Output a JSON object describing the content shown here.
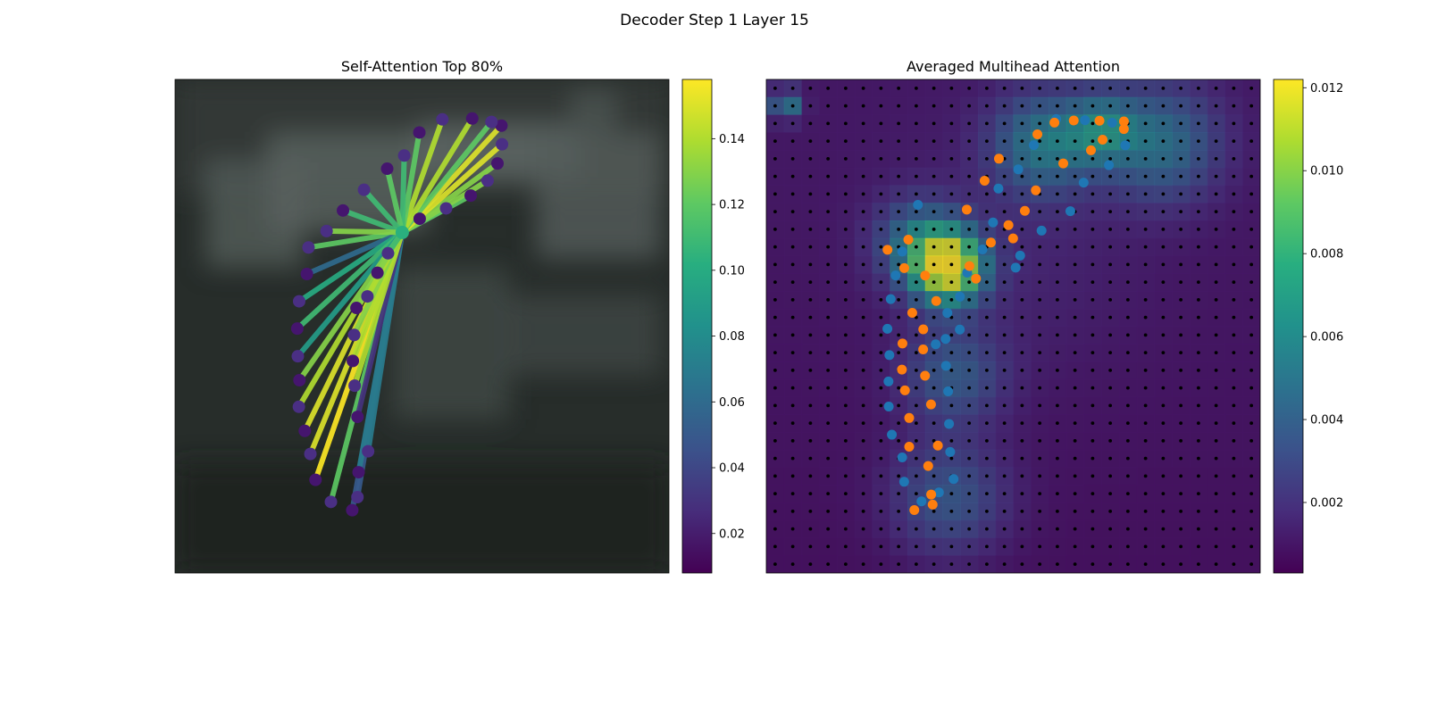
{
  "figure_title": "Decoder Step 1 Layer 15",
  "chart_data": [
    {
      "type": "attention-map",
      "title": "Self-Attention Top 80%",
      "source_point": [
        0.46,
        0.31
      ],
      "points": [
        {
          "x": 0.2702,
          "y": 0.3405,
          "w": 0.12
        },
        {
          "x": 0.2669,
          "y": 0.3942,
          "w": 0.06
        },
        {
          "x": 0.2513,
          "y": 0.4495,
          "w": 0.1
        },
        {
          "x": 0.2475,
          "y": 0.5048,
          "w": 0.11
        },
        {
          "x": 0.2486,
          "y": 0.5609,
          "w": 0.09
        },
        {
          "x": 0.2519,
          "y": 0.6094,
          "w": 0.13
        },
        {
          "x": 0.2507,
          "y": 0.6633,
          "w": 0.14
        },
        {
          "x": 0.2627,
          "y": 0.7121,
          "w": 0.15
        },
        {
          "x": 0.274,
          "y": 0.7588,
          "w": 0.15
        },
        {
          "x": 0.2844,
          "y": 0.8113,
          "w": 0.16
        },
        {
          "x": 0.3156,
          "y": 0.8559,
          "w": 0.12
        },
        {
          "x": 0.3588,
          "y": 0.8728,
          "w": 0.05
        },
        {
          "x": 0.3693,
          "y": 0.8463,
          "w": 0.05
        },
        {
          "x": 0.3716,
          "y": 0.7958,
          "w": 0.07
        },
        {
          "x": 0.3909,
          "y": 0.7534,
          "w": 0.07
        },
        {
          "x": 0.3694,
          "y": 0.6837,
          "w": 0.03
        },
        {
          "x": 0.3637,
          "y": 0.6205,
          "w": 0.14
        },
        {
          "x": 0.36,
          "y": 0.5703,
          "w": 0.14
        },
        {
          "x": 0.3627,
          "y": 0.5177,
          "w": 0.13
        },
        {
          "x": 0.3673,
          "y": 0.463,
          "w": 0.13
        },
        {
          "x": 0.3895,
          "y": 0.4396,
          "w": 0.14
        },
        {
          "x": 0.4098,
          "y": 0.3918,
          "w": 0.13
        },
        {
          "x": 0.4312,
          "y": 0.3522,
          "w": 0.11
        },
        {
          "x": 0.4953,
          "y": 0.2823,
          "w": 0.13
        },
        {
          "x": 0.5488,
          "y": 0.2612,
          "w": 0.12
        },
        {
          "x": 0.5986,
          "y": 0.2353,
          "w": 0.12
        },
        {
          "x": 0.6328,
          "y": 0.2051,
          "w": 0.13
        },
        {
          "x": 0.6528,
          "y": 0.1702,
          "w": 0.13
        },
        {
          "x": 0.662,
          "y": 0.1314,
          "w": 0.15
        },
        {
          "x": 0.6608,
          "y": 0.0936,
          "w": 0.15
        },
        {
          "x": 0.6407,
          "y": 0.0861,
          "w": 0.12
        },
        {
          "x": 0.6017,
          "y": 0.0792,
          "w": 0.14
        },
        {
          "x": 0.5412,
          "y": 0.081,
          "w": 0.14
        },
        {
          "x": 0.4946,
          "y": 0.1075,
          "w": 0.12
        },
        {
          "x": 0.464,
          "y": 0.1542,
          "w": 0.11
        },
        {
          "x": 0.4295,
          "y": 0.1809,
          "w": 0.12
        },
        {
          "x": 0.3826,
          "y": 0.2236,
          "w": 0.11
        },
        {
          "x": 0.34,
          "y": 0.2655,
          "w": 0.11
        },
        {
          "x": 0.3068,
          "y": 0.3072,
          "w": 0.13
        }
      ],
      "colorbar": {
        "min": 0.008,
        "max": 0.158,
        "ticks": [
          0.02,
          0.04,
          0.06,
          0.08,
          0.1,
          0.12,
          0.14
        ],
        "tick_labels": [
          "0.02",
          "0.04",
          "0.06",
          "0.08",
          "0.10",
          "0.12",
          "0.14"
        ]
      }
    },
    {
      "type": "heatmap",
      "title": "Averaged Multihead Attention",
      "grid_size": 28,
      "hotspots": [
        {
          "cx": 0.37,
          "cy": 0.38,
          "s": 0.05,
          "a": 0.011
        },
        {
          "cx": 0.31,
          "cy": 0.33,
          "s": 0.06,
          "a": 0.004
        },
        {
          "cx": 0.56,
          "cy": 0.13,
          "s": 0.07,
          "a": 0.0045
        },
        {
          "cx": 0.8,
          "cy": 0.13,
          "s": 0.08,
          "a": 0.004
        },
        {
          "cx": 0.68,
          "cy": 0.1,
          "s": 0.05,
          "a": 0.004
        },
        {
          "cx": 0.38,
          "cy": 0.6,
          "s": 0.07,
          "a": 0.003
        },
        {
          "cx": 0.37,
          "cy": 0.85,
          "s": 0.08,
          "a": 0.003
        },
        {
          "cx": 0.04,
          "cy": 0.05,
          "s": 0.02,
          "a": 0.005
        }
      ],
      "series": [
        {
          "name": "",
          "color": "#1f77b4",
          "points": [
            [
              0.307,
              0.254
            ],
            [
              0.2752,
              0.3487
            ],
            [
              0.2617,
              0.3971
            ],
            [
              0.2519,
              0.445
            ],
            [
              0.2452,
              0.5052
            ],
            [
              0.2492,
              0.5586
            ],
            [
              0.2474,
              0.6119
            ],
            [
              0.2479,
              0.6627
            ],
            [
              0.2542,
              0.7198
            ],
            [
              0.2752,
              0.7658
            ],
            [
              0.2791,
              0.8152
            ],
            [
              0.3142,
              0.8548
            ],
            [
              0.3495,
              0.8368
            ],
            [
              0.3792,
              0.8096
            ],
            [
              0.3723,
              0.7548
            ],
            [
              0.37,
              0.6979
            ],
            [
              0.3682,
              0.632
            ],
            [
              0.3638,
              0.5802
            ],
            [
              0.363,
              0.5257
            ],
            [
              0.3666,
              0.473
            ],
            [
              0.392,
              0.44
            ],
            [
              0.4067,
              0.3914
            ],
            [
              0.4377,
              0.3444
            ],
            [
              0.4591,
              0.2897
            ],
            [
              0.47,
              0.221
            ],
            [
              0.5101,
              0.1822
            ],
            [
              0.5416,
              0.1332
            ],
            [
              0.587,
              0.0803
            ],
            [
              0.6452,
              0.0826
            ],
            [
              0.7003,
              0.0876
            ],
            [
              0.7269,
              0.1335
            ],
            [
              0.6937,
              0.1737
            ],
            [
              0.6425,
              0.2091
            ],
            [
              0.6156,
              0.2669
            ],
            [
              0.5573,
              0.3062
            ],
            [
              0.514,
              0.357
            ],
            [
              0.5049,
              0.3814
            ],
            [
              0.3918,
              0.5067
            ],
            [
              0.343,
              0.5367
            ]
          ]
        },
        {
          "name": "",
          "color": "#ff7f0e",
          "points": [
            [
              0.2454,
              0.3452
            ],
            [
              0.2876,
              0.3246
            ],
            [
              0.2793,
              0.3822
            ],
            [
              0.3216,
              0.3974
            ],
            [
              0.3441,
              0.4489
            ],
            [
              0.2955,
              0.4729
            ],
            [
              0.3178,
              0.5063
            ],
            [
              0.2757,
              0.5351
            ],
            [
              0.3176,
              0.547
            ],
            [
              0.2746,
              0.5879
            ],
            [
              0.3214,
              0.6004
            ],
            [
              0.2807,
              0.63
            ],
            [
              0.3335,
              0.6584
            ],
            [
              0.2893,
              0.6859
            ],
            [
              0.2893,
              0.7442
            ],
            [
              0.3474,
              0.7418
            ],
            [
              0.3278,
              0.7832
            ],
            [
              0.3338,
              0.841
            ],
            [
              0.2997,
              0.8725
            ],
            [
              0.3368,
              0.8615
            ],
            [
              0.4112,
              0.3781
            ],
            [
              0.4245,
              0.4036
            ],
            [
              0.4547,
              0.3305
            ],
            [
              0.4903,
              0.2952
            ],
            [
              0.5235,
              0.2662
            ],
            [
              0.442,
              0.2052
            ],
            [
              0.4059,
              0.2637
            ],
            [
              0.471,
              0.1606
            ],
            [
              0.5489,
              0.1112
            ],
            [
              0.5834,
              0.0875
            ],
            [
              0.6225,
              0.0831
            ],
            [
              0.6746,
              0.0837
            ],
            [
              0.7241,
              0.085
            ],
            [
              0.724,
              0.1005
            ],
            [
              0.6809,
              0.122
            ],
            [
              0.6573,
              0.1435
            ],
            [
              0.6013,
              0.1702
            ],
            [
              0.5457,
              0.2246
            ],
            [
              0.4997,
              0.3221
            ]
          ]
        }
      ],
      "colorbar": {
        "min": 0.0003,
        "max": 0.0122,
        "ticks": [
          0.002,
          0.004,
          0.006,
          0.008,
          0.01,
          0.012
        ],
        "tick_labels": [
          "0.002",
          "0.004",
          "0.006",
          "0.008",
          "0.010",
          "0.012"
        ]
      }
    }
  ]
}
